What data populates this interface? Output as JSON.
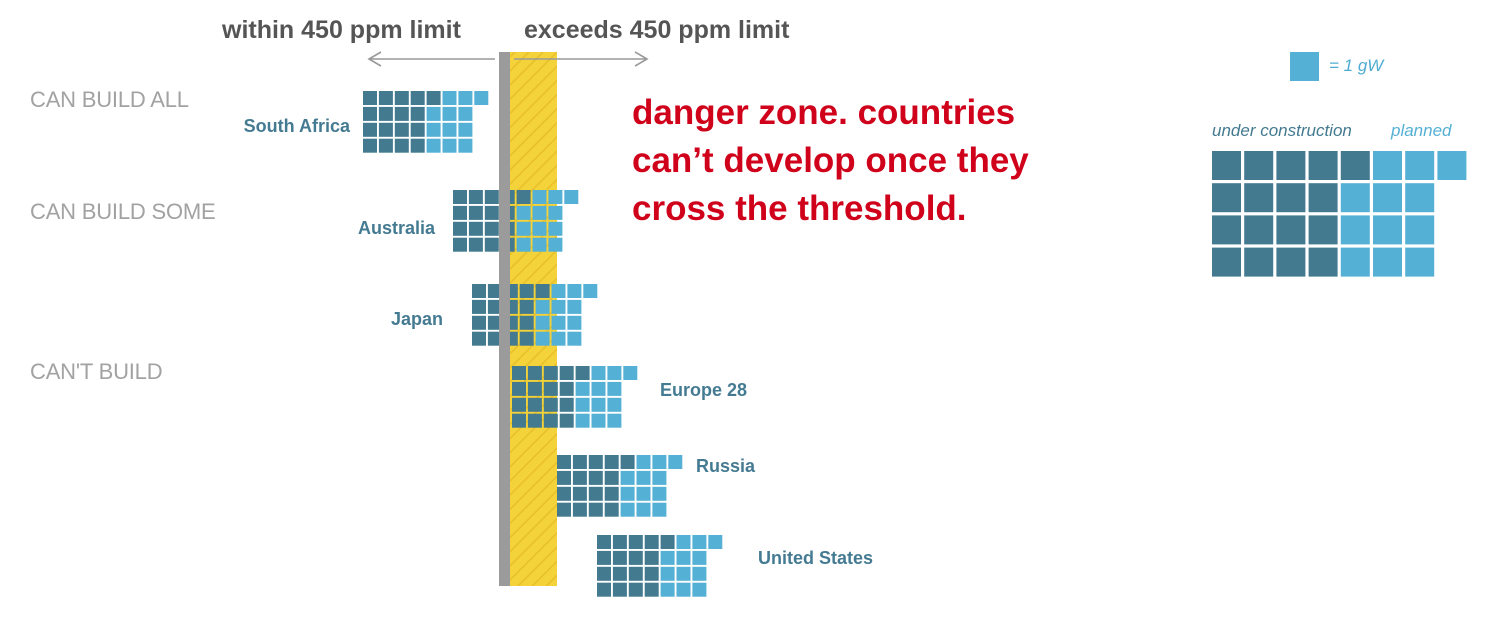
{
  "chart_data": {
    "type": "waffle",
    "header_left": "within 450 ppm limit",
    "header_right": "exceeds 450 ppm limit",
    "categories": [
      "CAN BUILD ALL",
      "CAN BUILD SOME",
      "CAN'T BUILD"
    ],
    "annotation": "danger zone. countries can’t develop once they cross the threshold.",
    "unit_label": "= 1 gW",
    "legend": {
      "under_construction": "under construction",
      "planned": "planned"
    },
    "colors": {
      "under_construction": "#437a8f",
      "planned": "#55b0d5",
      "danger_zone": "#f4d23a",
      "threshold_bar": "#9b9b9b",
      "annotation": "#d0021b"
    },
    "legend_example": {
      "under_construction": 17,
      "planned": 12
    },
    "series": [
      {
        "name": "South Africa",
        "under_construction": 17,
        "planned": 12
      },
      {
        "name": "Australia",
        "under_construction": 17,
        "planned": 12
      },
      {
        "name": "Japan",
        "under_construction": 17,
        "planned": 12
      },
      {
        "name": "Europe 28",
        "under_construction": 17,
        "planned": 12
      },
      {
        "name": "Russia",
        "under_construction": 17,
        "planned": 12
      },
      {
        "name": "United States",
        "under_construction": 17,
        "planned": 12
      }
    ]
  }
}
